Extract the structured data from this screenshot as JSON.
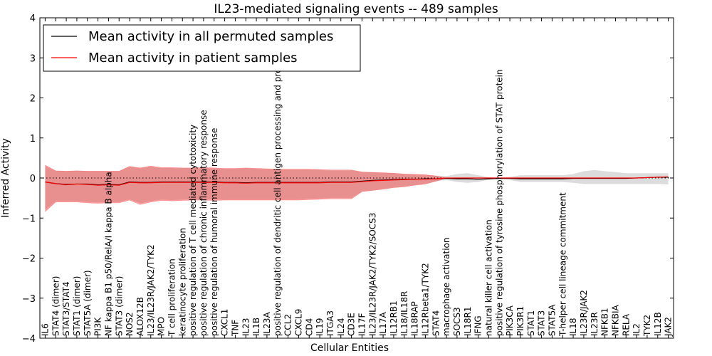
{
  "chart_data": {
    "type": "line",
    "title": "IL23-mediated signaling events -- 489 samples",
    "xlabel": "Cellular Entities",
    "ylabel": "Inferred Activity",
    "ylim": [
      -4,
      4
    ],
    "yticks": [
      "4",
      "3",
      "2",
      "1",
      "0",
      "−1",
      "−2",
      "−3",
      "−4"
    ],
    "legend": {
      "position": "top-left",
      "entries": [
        {
          "label": "Mean activity in all permuted samples",
          "color": "#000000"
        },
        {
          "label": "Mean activity in patient samples",
          "color": "#ff0000"
        }
      ]
    },
    "categories": [
      "IL6",
      "STAT4 (dimer)",
      "STAT3/STAT4",
      "STAT1 (dimer)",
      "STAT5A (dimer)",
      "PI3K",
      "NF kappa B1 p50/RelA/I kappa B alpha",
      "STAT3 (dimer)",
      "NOS2",
      "ALOX12B",
      "IL23/IL23R/JAK2/TYK2",
      "MPO",
      "T cell proliferation",
      "keratinocyte proliferation",
      "positive regulation of T cell mediated cytotoxicity",
      "positive regulation of chronic inflammatory response",
      "positive regulation of humoral immune response",
      "CXCL1",
      "TNF",
      "IL23",
      "IL1B",
      "IL23A",
      "positive regulation of dendritic cell antigen processing and presentation",
      "CCL2",
      "CXCL9",
      "CD4",
      "IL19",
      "ITGA3",
      "IL24",
      "CD3E",
      "IL17F",
      "IL23/IL23R/JAK2/TYK2/SOCS3",
      "IL17A",
      "IL12RB1",
      "IL18/IL18R",
      "IL18RAP",
      "IL12Rbeta1/TYK2",
      "STAT4",
      "macrophage activation",
      "SOCS3",
      "IL18R1",
      "IFNG",
      "natural killer cell activation",
      "positive regulation of tyrosine phosphorylation of STAT protein",
      "PIK3CA",
      "PIK3R1",
      "STAT1",
      "STAT3",
      "STAT5A",
      "T-helper cell lineage commitment",
      "IL18",
      "IL23R/JAK2",
      "IL23R",
      "NFKB1",
      "NFKBIA",
      "RELA",
      "IL2",
      "TYK2",
      "IL12B",
      "JAK2"
    ],
    "series": [
      {
        "name": "Mean activity in patient samples",
        "color": "#ff0000",
        "values": [
          -0.1,
          -0.14,
          -0.17,
          -0.15,
          -0.16,
          -0.18,
          -0.17,
          -0.18,
          -0.11,
          -0.12,
          -0.12,
          -0.11,
          -0.11,
          -0.11,
          -0.11,
          -0.11,
          -0.11,
          -0.12,
          -0.12,
          -0.13,
          -0.12,
          -0.12,
          -0.12,
          -0.12,
          -0.12,
          -0.12,
          -0.12,
          -0.11,
          -0.11,
          -0.11,
          -0.09,
          -0.07,
          -0.06,
          -0.05,
          -0.04,
          -0.03,
          -0.03,
          -0.02,
          0.0,
          0.0,
          0.0,
          0.0,
          0.0,
          0.0,
          0.0,
          0.0,
          0.0,
          0.0,
          0.0,
          0.0,
          0.0,
          0.0,
          0.0,
          0.0,
          0.0,
          0.0,
          0.0,
          0.01,
          0.02,
          0.03
        ],
        "upper": [
          0.32,
          0.18,
          0.17,
          0.18,
          0.17,
          0.17,
          0.17,
          0.17,
          0.29,
          0.25,
          0.3,
          0.26,
          0.26,
          0.25,
          0.25,
          0.26,
          0.25,
          0.24,
          0.24,
          0.25,
          0.24,
          0.23,
          0.22,
          0.22,
          0.22,
          0.22,
          0.21,
          0.2,
          0.2,
          0.2,
          0.15,
          0.14,
          0.13,
          0.12,
          0.1,
          0.09,
          0.08,
          0.05,
          0.0,
          0.0,
          0.0,
          0.0,
          0.0,
          0.0,
          0.0,
          0.0,
          0.0,
          0.0,
          0.0,
          0.0,
          0.0,
          0.0,
          0.0,
          0.0,
          0.0,
          0.0,
          0.0,
          0.01,
          0.02,
          0.03
        ],
        "lower": [
          -0.84,
          -0.6,
          -0.6,
          -0.6,
          -0.62,
          -0.63,
          -0.62,
          -0.62,
          -0.55,
          -0.66,
          -0.6,
          -0.56,
          -0.57,
          -0.56,
          -0.55,
          -0.55,
          -0.56,
          -0.55,
          -0.55,
          -0.55,
          -0.55,
          -0.55,
          -0.55,
          -0.55,
          -0.55,
          -0.54,
          -0.53,
          -0.52,
          -0.52,
          -0.52,
          -0.34,
          -0.31,
          -0.28,
          -0.24,
          -0.22,
          -0.18,
          -0.15,
          -0.08,
          0.0,
          0.0,
          0.0,
          0.0,
          0.0,
          0.0,
          0.0,
          0.0,
          0.0,
          0.0,
          0.0,
          0.0,
          0.0,
          0.0,
          0.0,
          0.0,
          0.0,
          0.0,
          0.0,
          0.01,
          0.02,
          0.03
        ]
      },
      {
        "name": "Mean activity in all permuted samples",
        "color": "#000000",
        "values": [
          -0.1,
          -0.14,
          -0.16,
          -0.15,
          -0.15,
          -0.17,
          -0.16,
          -0.17,
          -0.1,
          -0.11,
          -0.11,
          -0.1,
          -0.1,
          -0.1,
          -0.1,
          -0.1,
          -0.1,
          -0.11,
          -0.11,
          -0.12,
          -0.11,
          -0.11,
          -0.11,
          -0.11,
          -0.11,
          -0.11,
          -0.11,
          -0.1,
          -0.1,
          -0.1,
          -0.08,
          -0.06,
          -0.05,
          -0.04,
          -0.03,
          -0.03,
          -0.02,
          -0.02,
          -0.01,
          -0.02,
          -0.02,
          -0.03,
          -0.02,
          -0.01,
          -0.01,
          -0.02,
          -0.02,
          -0.02,
          -0.02,
          -0.02,
          -0.01,
          -0.01,
          -0.01,
          -0.01,
          -0.01,
          -0.01,
          0.0,
          0.01,
          0.02,
          0.02
        ],
        "upper": [
          0.3,
          0.18,
          0.17,
          0.18,
          0.17,
          0.17,
          0.17,
          0.17,
          0.28,
          0.24,
          0.28,
          0.25,
          0.25,
          0.24,
          0.24,
          0.25,
          0.24,
          0.23,
          0.23,
          0.24,
          0.23,
          0.22,
          0.21,
          0.21,
          0.21,
          0.21,
          0.2,
          0.19,
          0.19,
          0.19,
          0.15,
          0.14,
          0.13,
          0.12,
          0.1,
          0.09,
          0.08,
          0.06,
          0.05,
          0.1,
          0.12,
          0.07,
          0.02,
          0.01,
          0.03,
          0.07,
          0.07,
          0.07,
          0.07,
          0.07,
          0.1,
          0.17,
          0.2,
          0.17,
          0.15,
          0.12,
          0.12,
          0.12,
          0.12,
          0.12
        ],
        "lower": [
          -0.8,
          -0.58,
          -0.58,
          -0.58,
          -0.6,
          -0.61,
          -0.6,
          -0.6,
          -0.53,
          -0.63,
          -0.58,
          -0.54,
          -0.55,
          -0.54,
          -0.53,
          -0.53,
          -0.54,
          -0.53,
          -0.53,
          -0.53,
          -0.53,
          -0.53,
          -0.53,
          -0.53,
          -0.53,
          -0.52,
          -0.51,
          -0.5,
          -0.5,
          -0.5,
          -0.33,
          -0.3,
          -0.27,
          -0.23,
          -0.21,
          -0.17,
          -0.14,
          -0.08,
          -0.05,
          -0.1,
          -0.12,
          -0.1,
          -0.04,
          -0.02,
          -0.05,
          -0.1,
          -0.1,
          -0.1,
          -0.1,
          -0.1,
          -0.12,
          -0.15,
          -0.15,
          -0.15,
          -0.15,
          -0.15,
          -0.15,
          -0.15,
          -0.15,
          -0.16
        ]
      }
    ],
    "reference_line": 0
  }
}
